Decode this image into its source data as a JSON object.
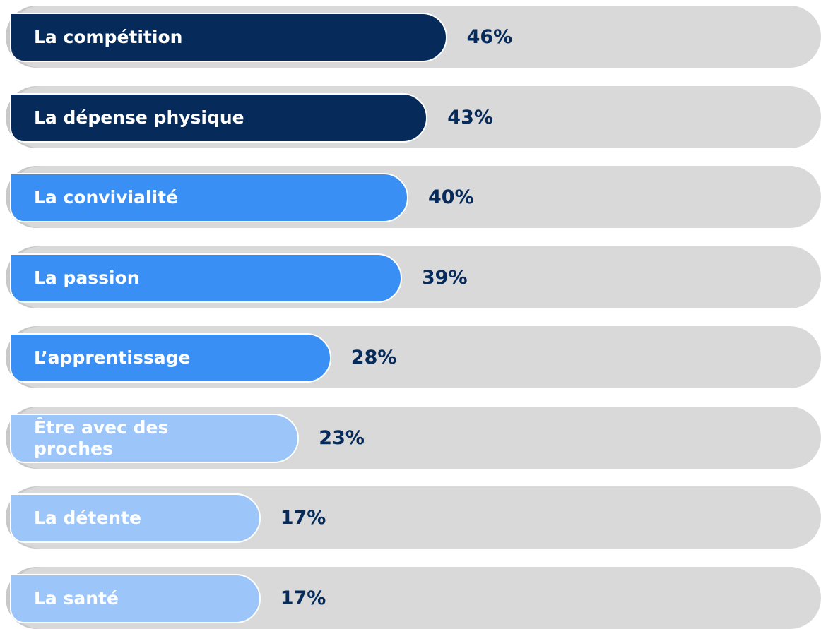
{
  "chart_data": {
    "type": "bar",
    "categories": [
      "La compétition",
      "La dépense physique",
      "La convivialité",
      "La passion",
      "L’apprentissage",
      "Être avec des proches",
      "La détente",
      "La santé"
    ],
    "values": [
      46,
      43,
      40,
      39,
      28,
      23,
      17,
      17
    ],
    "value_labels": [
      "46%",
      "43%",
      "40%",
      "39%",
      "28%",
      "23%",
      "17%",
      "17%"
    ],
    "colors": [
      "#062a5a",
      "#062a5a",
      "#3a8ff5",
      "#3a8ff5",
      "#3a8ff5",
      "#9cc5fa",
      "#9cc5fa",
      "#9cc5fa"
    ],
    "orientation": "horizontal"
  }
}
